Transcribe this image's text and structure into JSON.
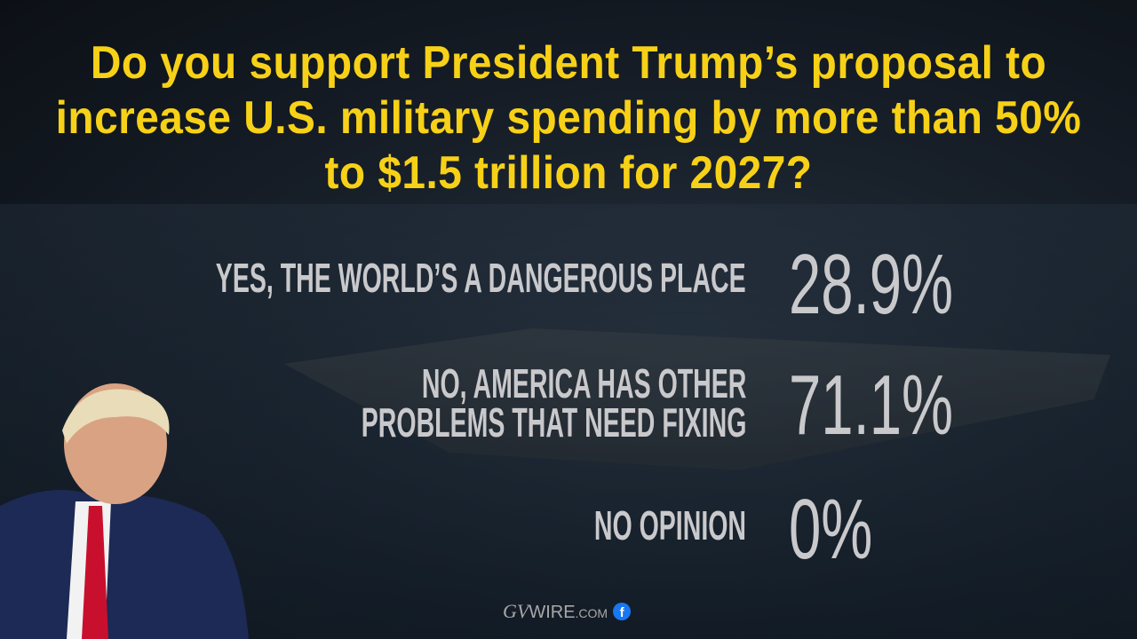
{
  "title": "Do you support President Trump’s proposal to increase U.S. military spending by more than 50% to $1.5 trillion for 2027?",
  "chart_data": {
    "type": "table",
    "title": "Do you support President Trump’s proposal to increase U.S. military spending by more than 50% to $1.5 trillion for 2027?",
    "categories": [
      "Yes, the world’s a dangerous place",
      "No, America has other problems that need fixing",
      "No opinion"
    ],
    "values": [
      28.9,
      71.1,
      0
    ],
    "display_values": [
      "28.9%",
      "71.1%",
      "0%"
    ]
  },
  "rows": [
    {
      "label_lines": [
        "Yes, the world’s a dangerous place"
      ],
      "value": "28.9%"
    },
    {
      "label_lines": [
        "No, America has other",
        "problems that need fixing"
      ],
      "value": "71.1%"
    },
    {
      "label_lines": [
        "No opinion"
      ],
      "value": "0%"
    }
  ],
  "logo": {
    "text_gv": "GV",
    "text_wire": "WIRE",
    "text_com": ".COM",
    "social": "f"
  },
  "colors": {
    "title": "#f7d117",
    "text": "#c9c9cc",
    "facebook": "#1877f2"
  }
}
